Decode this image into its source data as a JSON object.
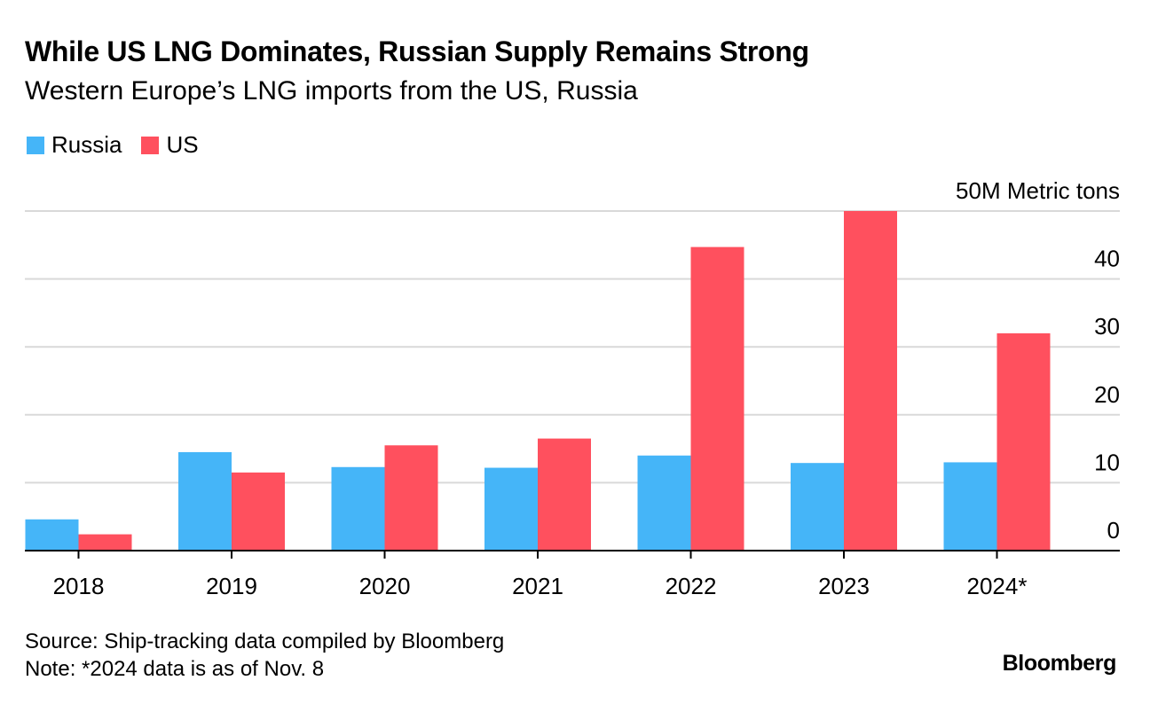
{
  "title": "While US LNG Dominates, Russian Supply Remains Strong",
  "subtitle": "Western Europe’s LNG imports from the US, Russia",
  "colors": {
    "russia": "#45B5F8",
    "us": "#FF505E",
    "grid": "#d9d9d9",
    "axis": "#000000"
  },
  "legend": [
    {
      "label": "Russia",
      "color": "#45B5F8"
    },
    {
      "label": "US",
      "color": "#FF505E"
    }
  ],
  "chart_data": {
    "type": "bar",
    "title": "While US LNG Dominates, Russian Supply Remains Strong",
    "subtitle": "Western Europe’s LNG imports from the US, Russia",
    "xlabel": "",
    "ylabel": "Metric tons",
    "unit_label": "50M Metric tons",
    "ylim": [
      0,
      50
    ],
    "yticks": [
      0,
      10,
      20,
      30,
      40,
      50
    ],
    "ytick_labels": [
      "0",
      "10",
      "20",
      "30",
      "40",
      "50M Metric tons"
    ],
    "categories": [
      "2018",
      "2019",
      "2020",
      "2021",
      "2022",
      "2023",
      "2024*"
    ],
    "series": [
      {
        "name": "Russia",
        "color": "#45B5F8",
        "values": [
          4.6,
          14.5,
          12.3,
          12.2,
          14.0,
          12.9,
          13.0
        ]
      },
      {
        "name": "US",
        "color": "#FF505E",
        "values": [
          2.4,
          11.5,
          15.5,
          16.5,
          44.7,
          50.0,
          32.0
        ]
      }
    ],
    "grid": true,
    "legend_position": "top-left"
  },
  "footer": {
    "source": "Source: Ship-tracking data compiled by Bloomberg",
    "note": "Note: *2024 data is as of Nov. 8"
  },
  "brand": "Bloomberg"
}
